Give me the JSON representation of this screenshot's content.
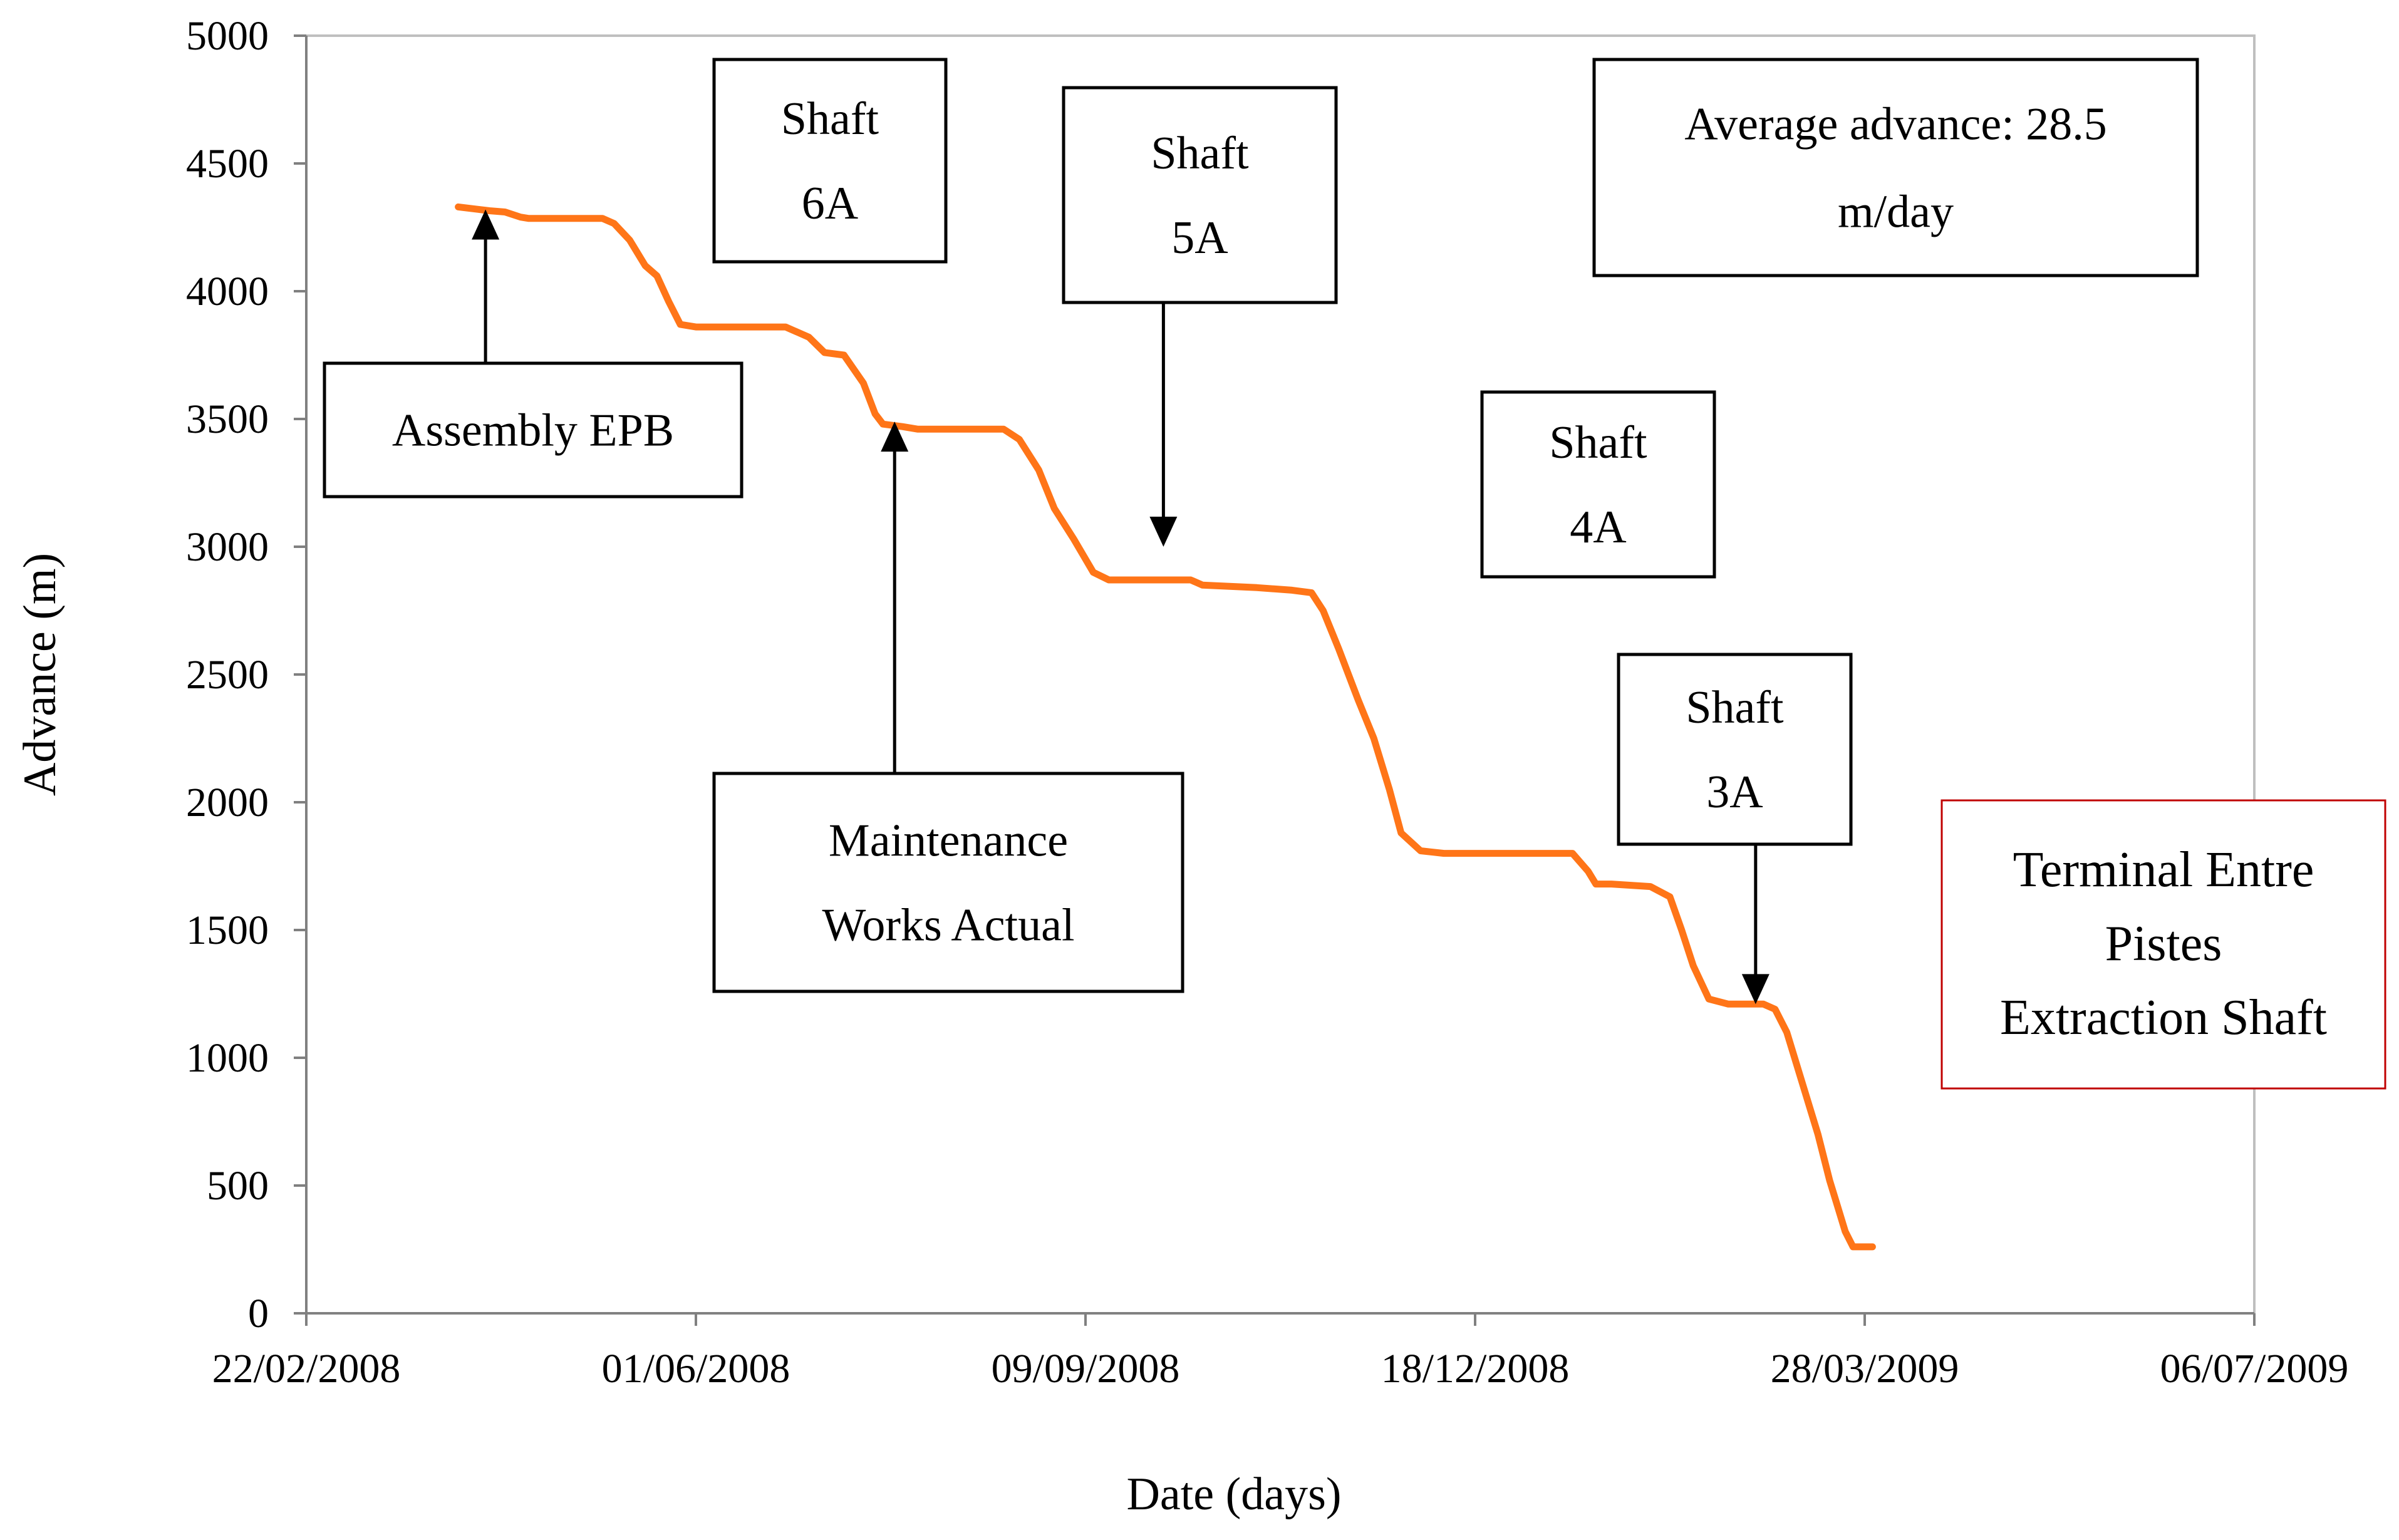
{
  "chart_data": {
    "type": "line",
    "xlabel": "Date (days)",
    "ylabel": "Advance  (m)",
    "xlim": [
      "22/02/2008",
      "06/07/2009"
    ],
    "ylim": [
      0,
      5000
    ],
    "x_tick_labels": [
      "22/02/2008",
      "01/06/2008",
      "09/09/2008",
      "18/12/2008",
      "28/03/2009",
      "06/07/2009"
    ],
    "y_tick_labels": [
      "0",
      "500",
      "1000",
      "1500",
      "2000",
      "2500",
      "3000",
      "3500",
      "4000",
      "4500",
      "5000"
    ],
    "grid": false,
    "series": [
      {
        "color": "#ff7518",
        "points": [
          [
            "2008-04-01",
            4330
          ],
          [
            "2008-04-09",
            4315
          ],
          [
            "2008-04-13",
            4310
          ],
          [
            "2008-04-17",
            4290
          ],
          [
            "2008-04-19",
            4285
          ],
          [
            "2008-05-08",
            4285
          ],
          [
            "2008-05-11",
            4265
          ],
          [
            "2008-05-15",
            4200
          ],
          [
            "2008-05-19",
            4100
          ],
          [
            "2008-05-22",
            4060
          ],
          [
            "2008-05-25",
            3960
          ],
          [
            "2008-05-28",
            3870
          ],
          [
            "2008-06-01",
            3860
          ],
          [
            "2008-06-24",
            3860
          ],
          [
            "2008-06-30",
            3820
          ],
          [
            "2008-07-04",
            3760
          ],
          [
            "2008-07-09",
            3750
          ],
          [
            "2008-07-14",
            3640
          ],
          [
            "2008-07-17",
            3520
          ],
          [
            "2008-07-19",
            3480
          ],
          [
            "2008-07-24",
            3470
          ],
          [
            "2008-07-28",
            3460
          ],
          [
            "2008-08-19",
            3460
          ],
          [
            "2008-08-23",
            3420
          ],
          [
            "2008-08-28",
            3300
          ],
          [
            "2008-09-01",
            3150
          ],
          [
            "2008-09-06",
            3030
          ],
          [
            "2008-09-11",
            2900
          ],
          [
            "2008-09-15",
            2870
          ],
          [
            "2008-10-06",
            2870
          ],
          [
            "2008-10-09",
            2850
          ],
          [
            "2008-10-23",
            2840
          ],
          [
            "2008-11-01",
            2830
          ],
          [
            "2008-11-06",
            2820
          ],
          [
            "2008-11-09",
            2750
          ],
          [
            "2008-11-13",
            2600
          ],
          [
            "2008-11-18",
            2400
          ],
          [
            "2008-11-22",
            2250
          ],
          [
            "2008-11-26",
            2050
          ],
          [
            "2008-11-29",
            1880
          ],
          [
            "2008-12-04",
            1810
          ],
          [
            "2008-12-10",
            1800
          ],
          [
            "2009-01-12",
            1800
          ],
          [
            "2009-01-16",
            1730
          ],
          [
            "2009-01-18",
            1680
          ],
          [
            "2009-01-22",
            1680
          ],
          [
            "2009-02-01",
            1670
          ],
          [
            "2009-02-06",
            1630
          ],
          [
            "2009-02-09",
            1500
          ],
          [
            "2009-02-12",
            1360
          ],
          [
            "2009-02-16",
            1230
          ],
          [
            "2009-02-21",
            1210
          ],
          [
            "2009-03-02",
            1210
          ],
          [
            "2009-03-05",
            1190
          ],
          [
            "2009-03-08",
            1100
          ],
          [
            "2009-03-12",
            900
          ],
          [
            "2009-03-16",
            700
          ],
          [
            "2009-03-19",
            520
          ],
          [
            "2009-03-21",
            420
          ],
          [
            "2009-03-23",
            320
          ],
          [
            "2009-03-25",
            260
          ],
          [
            "2009-03-30",
            260
          ]
        ]
      }
    ],
    "annotations": [
      {
        "lines": [
          "Assembly EPB"
        ],
        "arrow_target": [
          "2008-04-08",
          4320
        ]
      },
      {
        "lines": [
          "Shaft",
          "6A"
        ]
      },
      {
        "lines": [
          "Shaft",
          "5A"
        ],
        "arrow_target": [
          "2008-09-29",
          3000
        ]
      },
      {
        "lines": [
          "Average advance: 28.5",
          "m/day"
        ]
      },
      {
        "lines": [
          "Shaft",
          "4A"
        ]
      },
      {
        "lines": [
          "Maintenance",
          "Works Actual"
        ],
        "arrow_target": [
          "2008-07-22",
          3490
        ]
      },
      {
        "lines": [
          "Shaft",
          "3A"
        ],
        "arrow_target": [
          "2009-02-28",
          1210
        ]
      },
      {
        "lines": [
          "Terminal Entre",
          "Pistes",
          "Extraction Shaft"
        ],
        "border_color": "#c00000"
      }
    ]
  }
}
